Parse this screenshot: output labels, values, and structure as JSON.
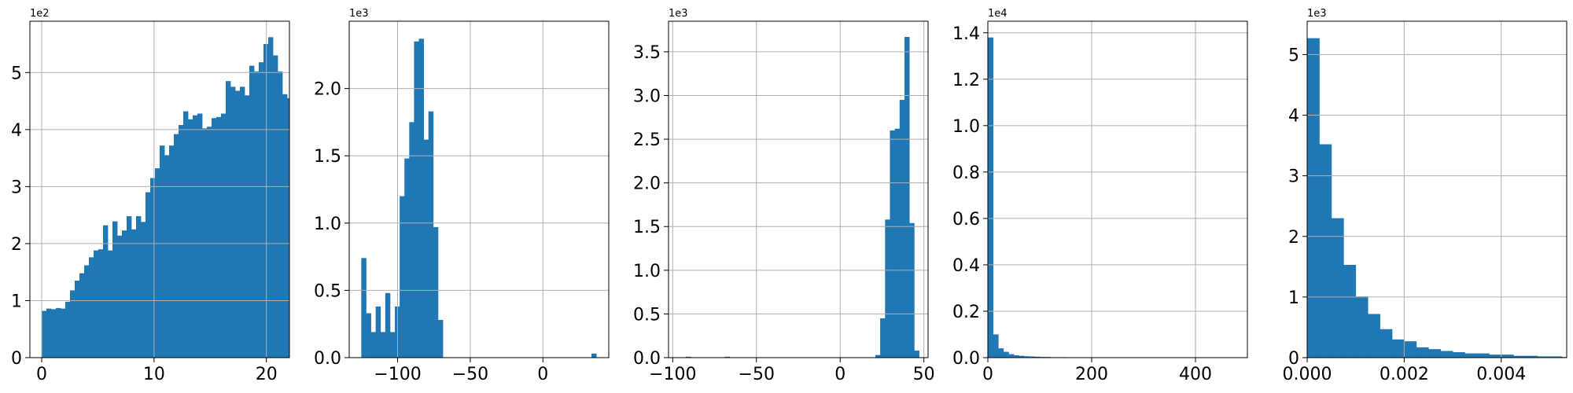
{
  "chart_data": [
    {
      "type": "bar",
      "histogram": true,
      "color": "#1f77b4",
      "grid": true,
      "scale_label": "1e2",
      "xlim": [
        -1.05,
        22.05
      ],
      "ylim": [
        0,
        5.9
      ],
      "xticks": [
        0,
        10,
        20
      ],
      "xtick_labels": [
        "0",
        "10",
        "20"
      ],
      "yticks": [
        0,
        1,
        2,
        3,
        4,
        5
      ],
      "ytick_labels": [
        "0",
        "1",
        "2",
        "3",
        "4",
        "5"
      ],
      "bin_start": 0,
      "bin_width": 0.42,
      "values": [
        0.82,
        0.86,
        0.85,
        0.87,
        0.86,
        0.98,
        1.18,
        1.35,
        1.48,
        1.62,
        1.76,
        1.88,
        1.9,
        2.32,
        1.88,
        2.39,
        2.14,
        2.23,
        2.48,
        2.25,
        2.48,
        2.38,
        2.9,
        3.15,
        3.32,
        3.72,
        3.55,
        3.72,
        3.92,
        4.08,
        4.32,
        4.18,
        4.25,
        4.28,
        4.02,
        4.05,
        4.2,
        4.22,
        4.28,
        4.85,
        4.75,
        4.68,
        4.75,
        4.6,
        5.12,
        5.02,
        5.18,
        5.5,
        5.62,
        5.3,
        5.02,
        4.62,
        4.55
      ]
    },
    {
      "type": "bar",
      "histogram": true,
      "color": "#1f77b4",
      "grid": true,
      "scale_label": "1e3",
      "xlim": [
        -133.3,
        45.3
      ],
      "ylim": [
        0,
        2.5
      ],
      "xticks": [
        -100,
        -50,
        0
      ],
      "xtick_labels": [
        "−100",
        "−50",
        "0"
      ],
      "yticks": [
        0,
        0.5,
        1.0,
        1.5,
        2.0
      ],
      "ytick_labels": [
        "0.0",
        "0.5",
        "1.0",
        "1.5",
        "2.0"
      ],
      "bin_start": -125,
      "bin_width": 3.3,
      "values": [
        0.74,
        0.33,
        0.19,
        0.38,
        0.19,
        0.48,
        0.19,
        0.38,
        1.2,
        1.48,
        1.75,
        2.35,
        2.37,
        1.62,
        1.83,
        0.97,
        0.28,
        0,
        0,
        0,
        0,
        0,
        0,
        0,
        0,
        0,
        0,
        0,
        0,
        0,
        0,
        0,
        0,
        0,
        0,
        0,
        0,
        0,
        0,
        0,
        0,
        0,
        0,
        0,
        0,
        0,
        0,
        0,
        0.03,
        0
      ]
    },
    {
      "type": "bar",
      "histogram": true,
      "color": "#1f77b4",
      "grid": true,
      "scale_label": "1e3",
      "xlim": [
        -102.5,
        52.5
      ],
      "ylim": [
        0,
        3.85
      ],
      "xticks": [
        -100,
        -50,
        0,
        50
      ],
      "xtick_labels": [
        "−100",
        "−50",
        "0",
        "50"
      ],
      "yticks": [
        0,
        0.5,
        1.0,
        1.5,
        2.0,
        2.5,
        3.0,
        3.5
      ],
      "ytick_labels": [
        "0.0",
        "0.5",
        "1.0",
        "1.5",
        "2.0",
        "2.5",
        "3.0",
        "3.5"
      ],
      "bin_start": -95,
      "bin_width": 2.9,
      "values": [
        0,
        0.01,
        0,
        0,
        0,
        0,
        0,
        0,
        0,
        0.01,
        0,
        0,
        0,
        0,
        0,
        0,
        0,
        0,
        0,
        0,
        0,
        0,
        0,
        0,
        0,
        0,
        0,
        0,
        0,
        0,
        0,
        0,
        0,
        0,
        0,
        0,
        0,
        0,
        0,
        0,
        0.03,
        0.45,
        1.58,
        2.6,
        2.62,
        2.95,
        3.67,
        1.54,
        0.08,
        0
      ]
    },
    {
      "type": "bar",
      "histogram": true,
      "color": "#1f77b4",
      "grid": true,
      "scale_label": "1e4",
      "xlim": [
        0,
        500
      ],
      "ylim": [
        0,
        1.45
      ],
      "xticks": [
        0,
        200,
        400
      ],
      "xtick_labels": [
        "0",
        "200",
        "400"
      ],
      "yticks": [
        0,
        0.2,
        0.4,
        0.6,
        0.8,
        1.0,
        1.2,
        1.4
      ],
      "ytick_labels": [
        "0.0",
        "0.2",
        "0.4",
        "0.6",
        "0.8",
        "1.0",
        "1.2",
        "1.4"
      ],
      "bin_start": 0,
      "bin_width": 10,
      "values": [
        1.38,
        0.1,
        0.04,
        0.025,
        0.015,
        0.01,
        0.008,
        0.006,
        0.005,
        0.004,
        0.003,
        0.003,
        0.002,
        0.002,
        0.002,
        0.001,
        0.001,
        0.001,
        0.001,
        0.001,
        0,
        0,
        0,
        0,
        0,
        0,
        0,
        0,
        0,
        0,
        0,
        0,
        0,
        0,
        0,
        0,
        0,
        0,
        0,
        0,
        0,
        0,
        0,
        0,
        0,
        0,
        0,
        0,
        0,
        0
      ]
    },
    {
      "type": "bar",
      "histogram": true,
      "color": "#1f77b4",
      "grid": true,
      "scale_label": "1e3",
      "xlim": [
        0,
        0.00535
      ],
      "ylim": [
        0,
        5.55
      ],
      "xticks": [
        0,
        0.002,
        0.004
      ],
      "xtick_labels": [
        "0.000",
        "0.002",
        "0.004"
      ],
      "yticks": [
        0,
        1,
        2,
        3,
        4,
        5
      ],
      "ytick_labels": [
        "0",
        "1",
        "2",
        "3",
        "4",
        "5"
      ],
      "bin_start": 0,
      "bin_width": 0.00025,
      "values": [
        5.27,
        3.52,
        2.3,
        1.53,
        1.01,
        0.72,
        0.47,
        0.3,
        0.27,
        0.17,
        0.14,
        0.11,
        0.09,
        0.07,
        0.07,
        0.05,
        0.05,
        0.03,
        0.03,
        0.02,
        0.02,
        0.01
      ]
    }
  ]
}
